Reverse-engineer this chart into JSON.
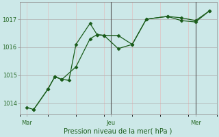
{
  "background_color": "#cce8e8",
  "grid_color": "#b0b0b0",
  "grid_color_minor": "#e0c0c0",
  "line_color": "#1a5c1a",
  "marker_color": "#1a5c1a",
  "vline_color": "#555555",
  "tick_label_color": "#2a6c2a",
  "xlabel": "Pression niveau de la mer( hPa )",
  "xlabel_color": "#1a5c1a",
  "ylim": [
    1013.6,
    1017.6
  ],
  "yticks": [
    1014,
    1015,
    1016,
    1017
  ],
  "xtick_labels": [
    "Mar",
    "Jeu",
    "Mer"
  ],
  "xtick_positions": [
    0,
    48,
    96
  ],
  "vline_positions": [
    48,
    96
  ],
  "xlim": [
    -4,
    108
  ],
  "series1_x": [
    0,
    4,
    12,
    16,
    20,
    24,
    28,
    36,
    40,
    44,
    52,
    60,
    68,
    80,
    88,
    96,
    104
  ],
  "series1_y": [
    1013.85,
    1013.78,
    1014.5,
    1014.95,
    1014.85,
    1014.82,
    1016.1,
    1016.85,
    1016.45,
    1016.42,
    1016.42,
    1016.1,
    1017.0,
    1017.1,
    1017.05,
    1016.95,
    1017.3
  ],
  "series2_x": [
    4,
    12,
    16,
    20,
    28,
    36,
    40,
    44,
    52,
    60,
    68,
    80,
    88,
    96,
    104
  ],
  "series2_y": [
    1013.78,
    1014.5,
    1014.95,
    1014.85,
    1015.3,
    1016.3,
    1016.45,
    1016.42,
    1015.95,
    1016.1,
    1017.0,
    1017.1,
    1016.95,
    1016.9,
    1017.3
  ],
  "figsize": [
    3.2,
    2.0
  ],
  "dpi": 100
}
